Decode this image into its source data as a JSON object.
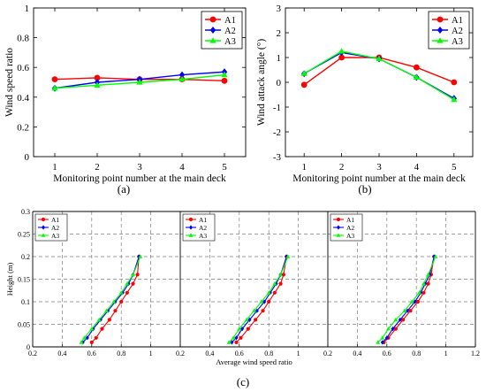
{
  "figure_labels": {
    "a": "(a)",
    "b": "(b)",
    "c": "(c)"
  },
  "colors": {
    "A1": "#ff0000",
    "A2": "#0000ff",
    "A3": "#00ff00",
    "grid": "#7f7f7f"
  },
  "chart_data": [
    {
      "id": "a",
      "type": "line",
      "xlabel": "Monitoring point number at the main deck",
      "ylabel": "Wind speed ratio",
      "x": [
        1,
        2,
        3,
        4,
        5
      ],
      "xlim": [
        0.5,
        5.5
      ],
      "ylim": [
        0,
        1
      ],
      "xticks": [
        "1",
        "2",
        "3",
        "4",
        "5"
      ],
      "yticks": [
        "0",
        "0.2",
        "0.4",
        "0.6",
        "0.8",
        "1"
      ],
      "grid": false,
      "legend": "top-right",
      "series": [
        {
          "name": "A1",
          "values": [
            0.52,
            0.53,
            0.52,
            0.52,
            0.51
          ]
        },
        {
          "name": "A2",
          "values": [
            0.46,
            0.5,
            0.52,
            0.55,
            0.57
          ]
        },
        {
          "name": "A3",
          "values": [
            0.46,
            0.48,
            0.5,
            0.52,
            0.55
          ]
        }
      ]
    },
    {
      "id": "b",
      "type": "line",
      "xlabel": "Monitoring point number at the main deck",
      "ylabel": "Wind attack angle (°)",
      "x": [
        1,
        2,
        3,
        4,
        5
      ],
      "xlim": [
        0.5,
        5.5
      ],
      "ylim": [
        -3,
        3
      ],
      "xticks": [
        "1",
        "2",
        "3",
        "4",
        "5"
      ],
      "yticks": [
        "-3",
        "-2",
        "-1",
        "0",
        "1",
        "2",
        "3"
      ],
      "grid": false,
      "legend": "top-right",
      "series": [
        {
          "name": "A1",
          "values": [
            -0.1,
            1.0,
            1.0,
            0.6,
            0.0
          ]
        },
        {
          "name": "A2",
          "values": [
            0.35,
            1.2,
            0.95,
            0.2,
            -0.65
          ]
        },
        {
          "name": "A3",
          "values": [
            0.35,
            1.25,
            0.95,
            0.2,
            -0.7
          ]
        }
      ]
    },
    {
      "id": "c",
      "type": "line",
      "xlabel": "Average wind speed ratio",
      "ylabel": "Height (m)",
      "grid": true,
      "legend": "top-left",
      "ylim": [
        0,
        0.3
      ],
      "yticks": [
        "0",
        "0.05",
        "0.1",
        "0.15",
        "0.2",
        "0.25",
        "0.3"
      ],
      "panels": [
        {
          "xlim": [
            0.2,
            1.2
          ],
          "xticks": [
            "0.2",
            "0.4",
            "0.6",
            "0.8",
            "1"
          ],
          "series": [
            {
              "name": "A1",
              "points": [
                [
                  0.6,
                  0.01
                ],
                [
                  0.63,
                  0.02
                ],
                [
                  0.67,
                  0.04
                ],
                [
                  0.72,
                  0.06
                ],
                [
                  0.76,
                  0.08
                ],
                [
                  0.8,
                  0.1
                ],
                [
                  0.84,
                  0.12
                ],
                [
                  0.88,
                  0.14
                ],
                [
                  0.91,
                  0.16
                ],
                [
                  0.92,
                  0.2
                ]
              ]
            },
            {
              "name": "A2",
              "points": [
                [
                  0.54,
                  0.01
                ],
                [
                  0.57,
                  0.02
                ],
                [
                  0.61,
                  0.04
                ],
                [
                  0.66,
                  0.06
                ],
                [
                  0.71,
                  0.08
                ],
                [
                  0.76,
                  0.1
                ],
                [
                  0.81,
                  0.12
                ],
                [
                  0.85,
                  0.14
                ],
                [
                  0.88,
                  0.16
                ],
                [
                  0.92,
                  0.2
                ]
              ]
            },
            {
              "name": "A3",
              "points": [
                [
                  0.53,
                  0.01
                ],
                [
                  0.55,
                  0.02
                ],
                [
                  0.6,
                  0.04
                ],
                [
                  0.65,
                  0.06
                ],
                [
                  0.7,
                  0.08
                ],
                [
                  0.75,
                  0.1
                ],
                [
                  0.8,
                  0.12
                ],
                [
                  0.84,
                  0.14
                ],
                [
                  0.88,
                  0.16
                ],
                [
                  0.93,
                  0.2
                ]
              ]
            }
          ]
        },
        {
          "xlim": [
            0.2,
            1.2
          ],
          "xticks": [
            "0.2",
            "0.4",
            "0.6",
            "0.8",
            "1"
          ],
          "series": [
            {
              "name": "A1",
              "points": [
                [
                  0.58,
                  0.01
                ],
                [
                  0.61,
                  0.02
                ],
                [
                  0.66,
                  0.04
                ],
                [
                  0.71,
                  0.06
                ],
                [
                  0.76,
                  0.08
                ],
                [
                  0.8,
                  0.1
                ],
                [
                  0.84,
                  0.12
                ],
                [
                  0.88,
                  0.14
                ],
                [
                  0.9,
                  0.16
                ],
                [
                  0.92,
                  0.2
                ]
              ]
            },
            {
              "name": "A2",
              "points": [
                [
                  0.55,
                  0.01
                ],
                [
                  0.58,
                  0.02
                ],
                [
                  0.62,
                  0.04
                ],
                [
                  0.67,
                  0.06
                ],
                [
                  0.72,
                  0.08
                ],
                [
                  0.77,
                  0.1
                ],
                [
                  0.81,
                  0.12
                ],
                [
                  0.85,
                  0.14
                ],
                [
                  0.88,
                  0.16
                ],
                [
                  0.92,
                  0.2
                ]
              ]
            },
            {
              "name": "A3",
              "points": [
                [
                  0.53,
                  0.01
                ],
                [
                  0.56,
                  0.02
                ],
                [
                  0.6,
                  0.04
                ],
                [
                  0.65,
                  0.06
                ],
                [
                  0.7,
                  0.08
                ],
                [
                  0.75,
                  0.1
                ],
                [
                  0.8,
                  0.12
                ],
                [
                  0.84,
                  0.14
                ],
                [
                  0.88,
                  0.16
                ],
                [
                  0.93,
                  0.2
                ]
              ]
            }
          ]
        },
        {
          "xlim": [
            0.2,
            1.2
          ],
          "xticks": [
            "0.2",
            "0.4",
            "0.6",
            "0.8",
            "1",
            "1.2"
          ],
          "series": [
            {
              "name": "A1",
              "points": [
                [
                  0.58,
                  0.01
                ],
                [
                  0.61,
                  0.02
                ],
                [
                  0.66,
                  0.04
                ],
                [
                  0.71,
                  0.06
                ],
                [
                  0.76,
                  0.08
                ],
                [
                  0.81,
                  0.1
                ],
                [
                  0.85,
                  0.12
                ],
                [
                  0.88,
                  0.14
                ],
                [
                  0.9,
                  0.16
                ],
                [
                  0.92,
                  0.2
                ]
              ]
            },
            {
              "name": "A2",
              "points": [
                [
                  0.57,
                  0.01
                ],
                [
                  0.6,
                  0.02
                ],
                [
                  0.64,
                  0.04
                ],
                [
                  0.69,
                  0.06
                ],
                [
                  0.74,
                  0.08
                ],
                [
                  0.79,
                  0.1
                ],
                [
                  0.83,
                  0.12
                ],
                [
                  0.86,
                  0.14
                ],
                [
                  0.89,
                  0.16
                ],
                [
                  0.92,
                  0.2
                ]
              ]
            },
            {
              "name": "A3",
              "points": [
                [
                  0.54,
                  0.01
                ],
                [
                  0.57,
                  0.02
                ],
                [
                  0.61,
                  0.04
                ],
                [
                  0.66,
                  0.06
                ],
                [
                  0.72,
                  0.08
                ],
                [
                  0.77,
                  0.1
                ],
                [
                  0.82,
                  0.12
                ],
                [
                  0.85,
                  0.14
                ],
                [
                  0.88,
                  0.16
                ],
                [
                  0.93,
                  0.2
                ]
              ]
            }
          ]
        }
      ]
    }
  ]
}
